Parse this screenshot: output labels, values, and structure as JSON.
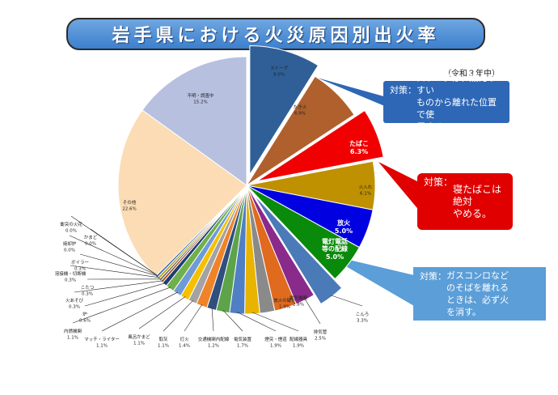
{
  "title": "岩手県における火災原因別出火率",
  "era_label": "（令和３年中）",
  "callouts": {
    "stove": {
      "label": "対策：",
      "text": "ストーブは、燃えやすい\nものから離れた位置で使\n用する。"
    },
    "tobacco": {
      "label": "対策：",
      "text": "寝たばこは絶対\nやめる。"
    },
    "gas": {
      "label": "対策：",
      "text": "ガスコンロなど\nのそばを離れる\nときは、必ず火\nを消す。"
    }
  },
  "colors": {
    "title_bg": "#4a8ad6",
    "callout_stove": "#2e67b5",
    "callout_tobacco": "#e00000",
    "callout_gas": "#5b9ed8"
  },
  "chart_data": {
    "type": "pie",
    "title": "岩手県における火災原因別出火率",
    "unit": "%",
    "slices": [
      {
        "name": "ストーブ",
        "value": 9.0,
        "label": "9.0%",
        "color": "#2f5f96",
        "exploded": true
      },
      {
        "name": "たき火",
        "value": 6.9,
        "label": "6.9%",
        "color": "#b0602c",
        "exploded": false
      },
      {
        "name": "たばこ",
        "value": 6.3,
        "label": "6.3%",
        "color": "#f00000",
        "exploded": true
      },
      {
        "name": "火入れ",
        "value": 6.1,
        "label": "6.1%",
        "color": "#bf9000",
        "exploded": false
      },
      {
        "name": "放火",
        "value": 5.0,
        "label": "5.0%",
        "color": "#0000e0",
        "exploded": false
      },
      {
        "name": "電灯電話等の配線",
        "value": 5.0,
        "label": "5.0%",
        "color": "#0a8a0a",
        "exploded": false
      },
      {
        "name": "こんろ",
        "value": 3.3,
        "label": "3.3%",
        "color": "#4a7ab8",
        "exploded": true
      },
      {
        "name": "排気管",
        "value": 2.5,
        "label": "2.5%",
        "color": "#8a2a8a",
        "exploded": false
      },
      {
        "name": "電気機器",
        "value": 2.8,
        "label": "2.8%",
        "color": "#e06a1e",
        "exploded": false
      },
      {
        "name": "放火の疑い",
        "value": 1.9,
        "label": "1.9%",
        "color": "#8a8a8a",
        "exploded": false
      },
      {
        "name": "配線器具",
        "value": 1.9,
        "label": "1.9%",
        "color": "#e8b400",
        "exploded": false
      },
      {
        "name": "煙突・煙道",
        "value": 1.9,
        "label": "1.9%",
        "color": "#4f7fc4",
        "exploded": false
      },
      {
        "name": "電気装置",
        "value": 1.7,
        "label": "1.7%",
        "color": "#5da34a",
        "exploded": false
      },
      {
        "name": "交通機関内配線",
        "value": 1.2,
        "label": "1.2%",
        "color": "#2f4f7f",
        "exploded": false
      },
      {
        "name": "灯火",
        "value": 1.4,
        "label": "1.4%",
        "color": "#f0832a",
        "exploded": false
      },
      {
        "name": "取灰",
        "value": 1.1,
        "label": "1.1%",
        "color": "#a3a3a3",
        "exploded": false
      },
      {
        "name": "風呂かまど",
        "value": 1.1,
        "label": "1.1%",
        "color": "#f5c000",
        "exploded": false
      },
      {
        "name": "マッチ・ライター",
        "value": 1.1,
        "label": "1.1%",
        "color": "#6f9ad6",
        "exploded": false
      },
      {
        "name": "内燃機関",
        "value": 1.1,
        "label": "1.1%",
        "color": "#6fb04a",
        "exploded": false
      },
      {
        "name": "炉",
        "value": 0.6,
        "label": "0.6%",
        "color": "#1f3f6f",
        "exploded": false
      },
      {
        "name": "火あそび",
        "value": 0.3,
        "label": "0.3%",
        "color": "#9e4a1a",
        "exploded": false
      },
      {
        "name": "こたつ",
        "value": 0.3,
        "label": "0.3%",
        "color": "#707070",
        "exploded": false
      },
      {
        "name": "溶接機・切断機",
        "value": 0.3,
        "label": "0.3%",
        "color": "#b8a000",
        "exploded": false
      },
      {
        "name": "ボイラー",
        "value": 0.3,
        "label": "0.3%",
        "color": "#3a6ab0",
        "exploded": false
      },
      {
        "name": "焼却炉",
        "value": 0.0,
        "label": "0.0%",
        "color": "#4a8a3a",
        "exploded": false
      },
      {
        "name": "かまど",
        "value": 0.0,
        "label": "0.0%",
        "color": "#9ab8e0",
        "exploded": false
      },
      {
        "name": "衝突の火花",
        "value": 0.0,
        "label": "0.0%",
        "color": "#f2b88a",
        "exploded": false
      },
      {
        "name": "その他",
        "value": 22.6,
        "label": "22.6%",
        "color": "#fbdcb4",
        "exploded": false
      },
      {
        "name": "不明・調査中",
        "value": 15.2,
        "label": "15.2%",
        "color": "#b8c0e0",
        "exploded": false
      }
    ]
  }
}
